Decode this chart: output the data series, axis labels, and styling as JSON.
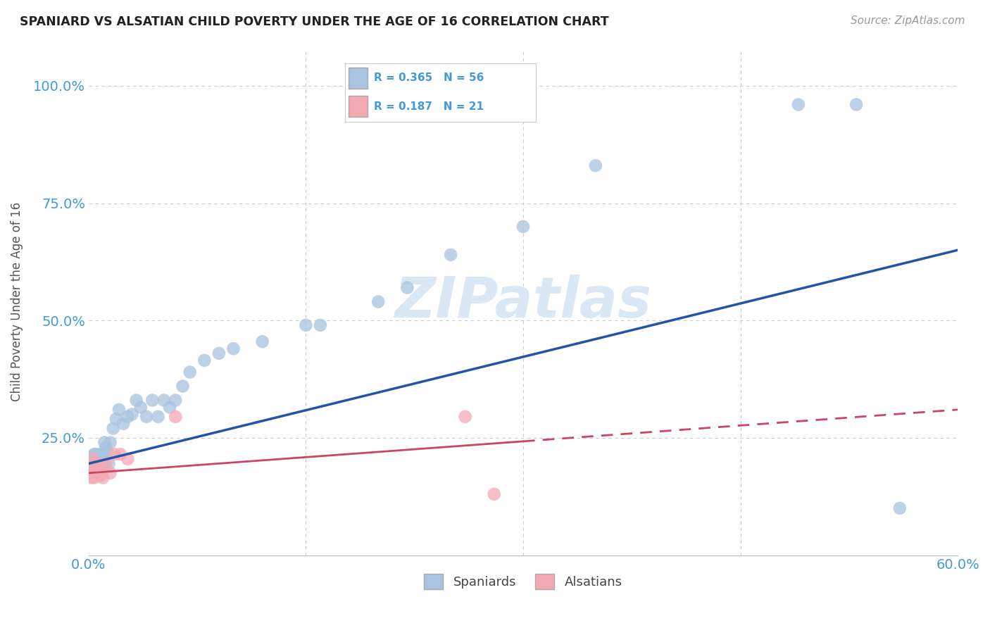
{
  "title": "SPANIARD VS ALSATIAN CHILD POVERTY UNDER THE AGE OF 16 CORRELATION CHART",
  "source": "Source: ZipAtlas.com",
  "ylabel": "Child Poverty Under the Age of 16",
  "legend_label_1": "Spaniards",
  "legend_label_2": "Alsatians",
  "R_spaniards": 0.365,
  "N_spaniards": 56,
  "R_alsatians": 0.187,
  "N_alsatians": 21,
  "color_spaniards": "#a8c4e0",
  "color_alsatians": "#f4a8b4",
  "color_trend_spaniards": "#2255aa",
  "color_trend_alsatians": "#cc4466",
  "background_color": "#ffffff",
  "title_color": "#222222",
  "axis_color": "#4499dd",
  "watermark_color": "#dae8f5",
  "xlim": [
    0.0,
    0.6
  ],
  "ylim": [
    0.0,
    1.08
  ],
  "x_ticks": [
    0.0,
    0.6
  ],
  "x_tick_labels": [
    "0.0%",
    "60.0%"
  ],
  "y_ticks": [
    0.0,
    0.25,
    0.5,
    0.75,
    1.0
  ],
  "y_tick_labels": [
    "",
    "25.0%",
    "50.0%",
    "75.0%",
    "100.0%"
  ],
  "spaniards_x": [
    0.002,
    0.002,
    0.003,
    0.003,
    0.003,
    0.004,
    0.004,
    0.004,
    0.005,
    0.005,
    0.005,
    0.006,
    0.006,
    0.007,
    0.007,
    0.008,
    0.008,
    0.009,
    0.009,
    0.01,
    0.01,
    0.011,
    0.012,
    0.013,
    0.014,
    0.015,
    0.017,
    0.019,
    0.021,
    0.024,
    0.027,
    0.03,
    0.033,
    0.036,
    0.04,
    0.044,
    0.048,
    0.052,
    0.056,
    0.06,
    0.065,
    0.07,
    0.08,
    0.09,
    0.1,
    0.12,
    0.15,
    0.16,
    0.2,
    0.22,
    0.25,
    0.3,
    0.35,
    0.49,
    0.53,
    0.56
  ],
  "spaniards_y": [
    0.195,
    0.18,
    0.21,
    0.19,
    0.2,
    0.215,
    0.185,
    0.195,
    0.18,
    0.205,
    0.215,
    0.21,
    0.195,
    0.205,
    0.185,
    0.215,
    0.2,
    0.21,
    0.195,
    0.215,
    0.2,
    0.24,
    0.23,
    0.22,
    0.195,
    0.24,
    0.27,
    0.29,
    0.31,
    0.28,
    0.295,
    0.3,
    0.33,
    0.315,
    0.295,
    0.33,
    0.295,
    0.33,
    0.315,
    0.33,
    0.36,
    0.39,
    0.415,
    0.43,
    0.44,
    0.455,
    0.49,
    0.49,
    0.54,
    0.57,
    0.64,
    0.7,
    0.83,
    0.96,
    0.96,
    0.1
  ],
  "alsatians_x": [
    0.001,
    0.002,
    0.002,
    0.003,
    0.003,
    0.004,
    0.005,
    0.005,
    0.006,
    0.007,
    0.008,
    0.009,
    0.01,
    0.012,
    0.015,
    0.018,
    0.022,
    0.027,
    0.06,
    0.26,
    0.28
  ],
  "alsatians_y": [
    0.175,
    0.195,
    0.165,
    0.185,
    0.205,
    0.165,
    0.175,
    0.195,
    0.18,
    0.19,
    0.17,
    0.185,
    0.165,
    0.195,
    0.175,
    0.215,
    0.215,
    0.205,
    0.295,
    0.295,
    0.13
  ],
  "trend_blue_x0": 0.0,
  "trend_blue_y0": 0.195,
  "trend_blue_x1": 0.6,
  "trend_blue_y1": 0.65,
  "trend_pink_x0": 0.0,
  "trend_pink_y0": 0.175,
  "trend_pink_x1": 0.6,
  "trend_pink_y1": 0.31,
  "trend_pink_dashed_x0": 0.3,
  "trend_pink_dashed_x1": 0.6
}
